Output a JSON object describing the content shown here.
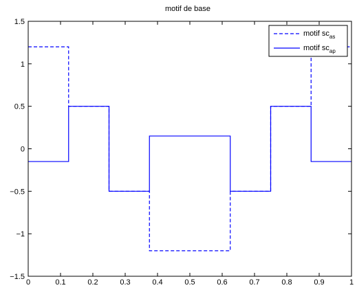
{
  "chart_data": {
    "type": "line",
    "title": "motif de base",
    "xlabel": "",
    "ylabel": "",
    "xlim": [
      0,
      1
    ],
    "ylim": [
      -1.5,
      1.5
    ],
    "xticks": [
      "0",
      "0.1",
      "0.2",
      "0.3",
      "0.4",
      "0.5",
      "0.6",
      "0.7",
      "0.8",
      "0.9",
      "1"
    ],
    "yticks": [
      "-1.5",
      "-1",
      "-0.5",
      "0",
      "0.5",
      "1",
      "1.5"
    ],
    "grid": false,
    "legend_position": "top-right",
    "series": [
      {
        "name": "motif sc",
        "name_subscript": "as",
        "style": "dashed",
        "color": "#0000ff",
        "x": [
          0,
          0.125,
          0.125,
          0.25,
          0.25,
          0.375,
          0.375,
          0.625,
          0.625,
          0.75,
          0.75,
          0.875,
          0.875,
          1
        ],
        "y": [
          1.2,
          1.2,
          0.5,
          0.5,
          -0.5,
          -0.5,
          -1.2,
          -1.2,
          -0.5,
          -0.5,
          0.5,
          0.5,
          1.2,
          1.2
        ]
      },
      {
        "name": "motif sc",
        "name_subscript": "ap",
        "style": "solid",
        "color": "#0000ff",
        "x": [
          0,
          0.125,
          0.125,
          0.25,
          0.25,
          0.375,
          0.375,
          0.625,
          0.625,
          0.75,
          0.75,
          0.875,
          0.875,
          1
        ],
        "y": [
          -0.15,
          -0.15,
          0.5,
          0.5,
          -0.5,
          -0.5,
          0.15,
          0.15,
          -0.5,
          -0.5,
          0.5,
          0.5,
          -0.15,
          -0.15
        ]
      }
    ]
  }
}
